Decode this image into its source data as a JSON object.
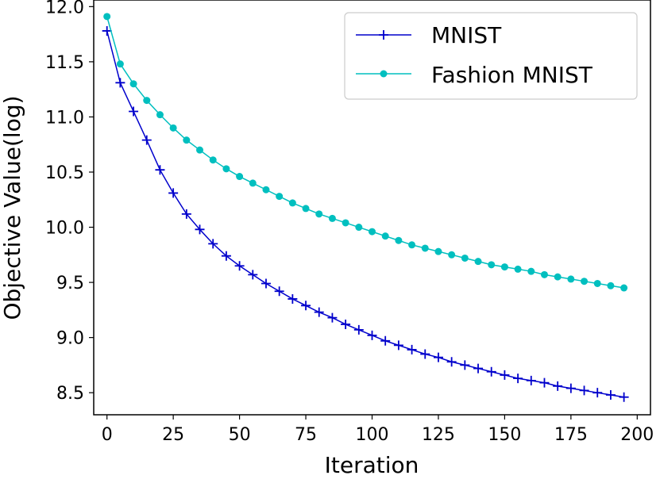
{
  "chart_data": {
    "type": "line",
    "title": "",
    "xlabel": "Iteration",
    "ylabel": "Objective Value(log)",
    "xlim": [
      -5,
      205
    ],
    "ylim": [
      8.3,
      12.06
    ],
    "grid": false,
    "legend_position": "top-right",
    "xticks": [
      {
        "value": 0,
        "label": "0"
      },
      {
        "value": 25,
        "label": "25"
      },
      {
        "value": 50,
        "label": "50"
      },
      {
        "value": 75,
        "label": "75"
      },
      {
        "value": 100,
        "label": "100"
      },
      {
        "value": 125,
        "label": "125"
      },
      {
        "value": 150,
        "label": "150"
      },
      {
        "value": 175,
        "label": "175"
      },
      {
        "value": 200,
        "label": "200"
      }
    ],
    "yticks": [
      {
        "value": 8.5,
        "label": "8.5"
      },
      {
        "value": 9.0,
        "label": "9.0"
      },
      {
        "value": 9.5,
        "label": "9.5"
      },
      {
        "value": 10.0,
        "label": "10.0"
      },
      {
        "value": 10.5,
        "label": "10.5"
      },
      {
        "value": 11.0,
        "label": "11.0"
      },
      {
        "value": 11.5,
        "label": "11.5"
      },
      {
        "value": 12.0,
        "label": "12.0"
      }
    ],
    "x": [
      0,
      5,
      10,
      15,
      20,
      25,
      30,
      35,
      40,
      45,
      50,
      55,
      60,
      65,
      70,
      75,
      80,
      85,
      90,
      95,
      100,
      105,
      110,
      115,
      120,
      125,
      130,
      135,
      140,
      145,
      150,
      155,
      160,
      165,
      170,
      175,
      180,
      185,
      190,
      195
    ],
    "series": [
      {
        "name": "MNIST",
        "color": "#0000cc",
        "marker": "plus",
        "values": [
          11.78,
          11.31,
          11.05,
          10.79,
          10.52,
          10.31,
          10.12,
          9.98,
          9.85,
          9.74,
          9.65,
          9.57,
          9.49,
          9.42,
          9.35,
          9.29,
          9.23,
          9.18,
          9.12,
          9.07,
          9.02,
          8.97,
          8.93,
          8.89,
          8.85,
          8.82,
          8.78,
          8.75,
          8.72,
          8.69,
          8.66,
          8.63,
          8.61,
          8.59,
          8.56,
          8.54,
          8.52,
          8.5,
          8.48,
          8.46
        ]
      },
      {
        "name": "Fashion MNIST",
        "color": "#00bfbf",
        "marker": "circle",
        "values": [
          11.91,
          11.48,
          11.3,
          11.15,
          11.02,
          10.9,
          10.79,
          10.7,
          10.61,
          10.53,
          10.46,
          10.4,
          10.34,
          10.28,
          10.22,
          10.17,
          10.12,
          10.08,
          10.04,
          10.0,
          9.96,
          9.92,
          9.88,
          9.84,
          9.81,
          9.78,
          9.75,
          9.72,
          9.69,
          9.66,
          9.64,
          9.62,
          9.6,
          9.57,
          9.55,
          9.53,
          9.51,
          9.49,
          9.47,
          9.45
        ]
      }
    ]
  }
}
